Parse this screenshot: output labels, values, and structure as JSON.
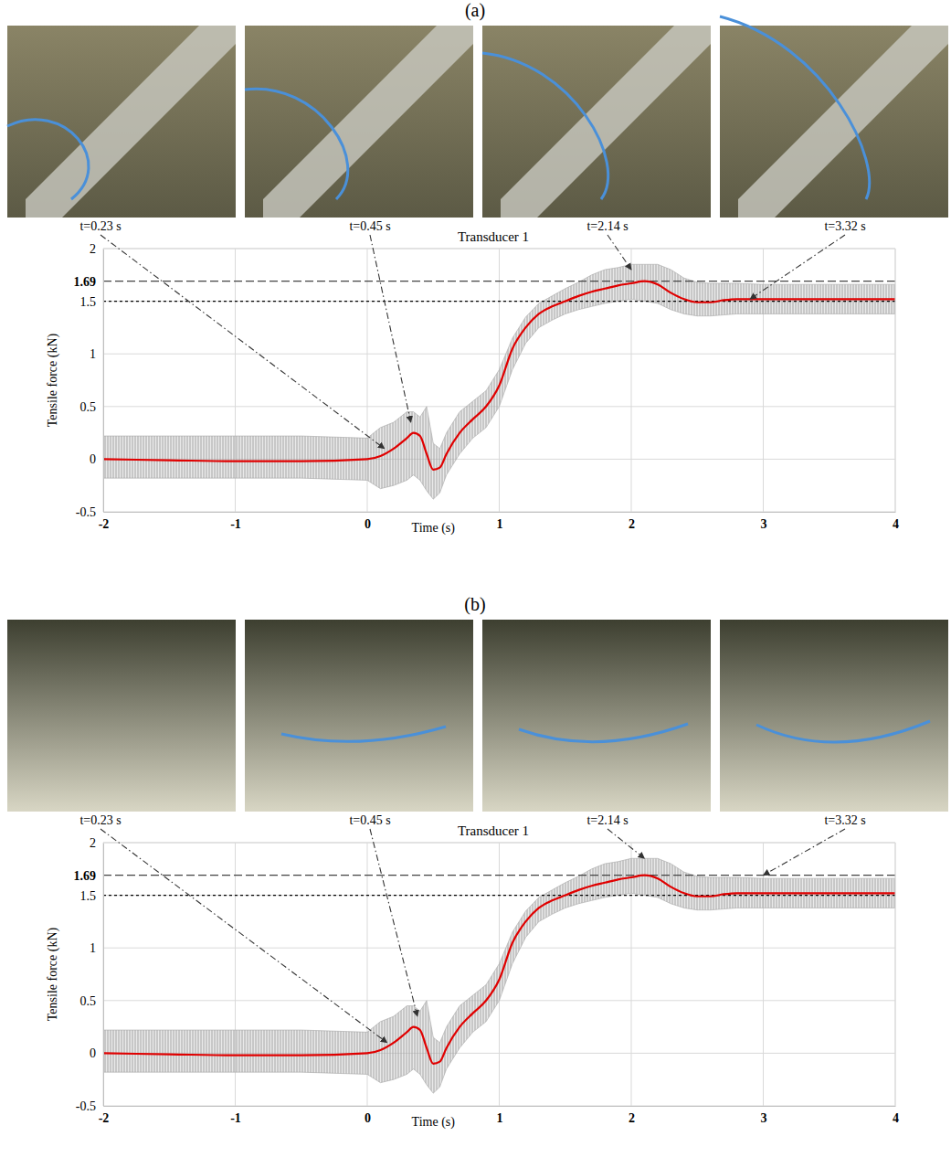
{
  "chart_data": [
    {
      "panel": "(a)",
      "type": "line",
      "title": "Transducer 1",
      "x_label": "Time (s)",
      "y_label": "Tensile force (kN)",
      "x": [
        -2,
        -1.5,
        -1,
        -0.5,
        0,
        0.1,
        0.2,
        0.3,
        0.35,
        0.4,
        0.45,
        0.5,
        0.55,
        0.6,
        0.7,
        0.8,
        0.9,
        1,
        1.1,
        1.2,
        1.3,
        1.4,
        1.5,
        1.6,
        1.7,
        1.8,
        1.9,
        2,
        2.1,
        2.2,
        2.3,
        2.4,
        2.5,
        2.6,
        2.7,
        2.8,
        3,
        3.5,
        4
      ],
      "series": [
        {
          "color": "#e00000",
          "values": [
            0,
            -0.01,
            -0.02,
            -0.02,
            0,
            0.03,
            0.1,
            0.2,
            0.25,
            0.22,
            0.05,
            -0.1,
            -0.08,
            0.05,
            0.25,
            0.38,
            0.5,
            0.7,
            1.05,
            1.25,
            1.38,
            1.45,
            1.5,
            1.55,
            1.59,
            1.62,
            1.65,
            1.67,
            1.69,
            1.66,
            1.58,
            1.52,
            1.49,
            1.49,
            1.51,
            1.52,
            1.52,
            1.52,
            1.52
          ]
        }
      ],
      "band": {
        "color": "#a6a6a6",
        "upper": [
          0.22,
          0.22,
          0.22,
          0.22,
          0.2,
          0.3,
          0.35,
          0.45,
          0.45,
          0.4,
          0.5,
          0.15,
          0.1,
          0.25,
          0.45,
          0.55,
          0.65,
          0.85,
          1.15,
          1.35,
          1.48,
          1.55,
          1.62,
          1.68,
          1.75,
          1.8,
          1.82,
          1.85,
          1.85,
          1.85,
          1.8,
          1.72,
          1.68,
          1.67,
          1.67,
          1.67,
          1.66,
          1.66,
          1.66
        ],
        "lower": [
          -0.18,
          -0.18,
          -0.18,
          -0.18,
          -0.2,
          -0.28,
          -0.25,
          -0.2,
          -0.15,
          -0.2,
          -0.3,
          -0.38,
          -0.32,
          -0.15,
          0.05,
          0.2,
          0.3,
          0.5,
          0.85,
          1.1,
          1.25,
          1.32,
          1.38,
          1.42,
          1.45,
          1.48,
          1.5,
          1.52,
          1.5,
          1.48,
          1.42,
          1.38,
          1.36,
          1.36,
          1.37,
          1.38,
          1.38,
          1.38,
          1.38
        ]
      },
      "xlim": [
        -2,
        4
      ],
      "xticks": [
        -2,
        -1,
        0,
        1,
        2,
        3,
        4
      ],
      "ylim": [
        -0.5,
        2
      ],
      "yticks": [
        -0.5,
        0,
        0.5,
        1,
        1.5,
        2
      ],
      "grid": true,
      "ref_lines": [
        {
          "value": 1.69,
          "label": "1.69",
          "line_style": "dashed"
        },
        {
          "value": 1.5,
          "line_style": "dotted"
        }
      ],
      "annotations": [
        {
          "text": "t=0.23 s",
          "x": 0.13,
          "y": 0.1
        },
        {
          "text": "t=0.45 s",
          "x": 0.33,
          "y": 0.35
        },
        {
          "text": "t=2.14 s",
          "x": 2.0,
          "y": 1.8
        },
        {
          "text": "t=3.32 s",
          "x": 2.9,
          "y": 1.52
        }
      ]
    },
    {
      "panel": "(b)",
      "type": "line",
      "title": "Transducer 1",
      "x_label": "Time (s)",
      "y_label": "Tensile force (kN)",
      "x": [
        -2,
        -1.5,
        -1,
        -0.5,
        0,
        0.1,
        0.2,
        0.3,
        0.35,
        0.4,
        0.45,
        0.5,
        0.55,
        0.6,
        0.7,
        0.8,
        0.9,
        1,
        1.1,
        1.2,
        1.3,
        1.4,
        1.5,
        1.6,
        1.7,
        1.8,
        1.9,
        2,
        2.1,
        2.2,
        2.3,
        2.4,
        2.5,
        2.6,
        2.7,
        2.8,
        3,
        3.5,
        4
      ],
      "series": [
        {
          "color": "#e00000",
          "values": [
            0,
            -0.01,
            -0.02,
            -0.02,
            0,
            0.03,
            0.1,
            0.2,
            0.25,
            0.22,
            0.05,
            -0.1,
            -0.08,
            0.05,
            0.25,
            0.38,
            0.5,
            0.7,
            1.05,
            1.25,
            1.38,
            1.45,
            1.5,
            1.55,
            1.59,
            1.62,
            1.65,
            1.67,
            1.69,
            1.66,
            1.58,
            1.52,
            1.49,
            1.49,
            1.51,
            1.52,
            1.52,
            1.52,
            1.52
          ]
        }
      ],
      "band": {
        "color": "#a6a6a6",
        "upper": [
          0.22,
          0.22,
          0.22,
          0.22,
          0.2,
          0.3,
          0.35,
          0.45,
          0.45,
          0.4,
          0.5,
          0.15,
          0.1,
          0.25,
          0.45,
          0.55,
          0.65,
          0.85,
          1.15,
          1.35,
          1.48,
          1.55,
          1.62,
          1.68,
          1.75,
          1.8,
          1.82,
          1.85,
          1.85,
          1.85,
          1.8,
          1.72,
          1.68,
          1.67,
          1.67,
          1.67,
          1.66,
          1.66,
          1.66
        ],
        "lower": [
          -0.18,
          -0.18,
          -0.18,
          -0.18,
          -0.2,
          -0.28,
          -0.25,
          -0.2,
          -0.15,
          -0.2,
          -0.3,
          -0.38,
          -0.32,
          -0.15,
          0.05,
          0.2,
          0.3,
          0.5,
          0.85,
          1.1,
          1.25,
          1.32,
          1.38,
          1.42,
          1.45,
          1.48,
          1.5,
          1.52,
          1.5,
          1.48,
          1.42,
          1.38,
          1.36,
          1.36,
          1.37,
          1.38,
          1.38,
          1.38,
          1.38
        ]
      },
      "xlim": [
        -2,
        4
      ],
      "xticks": [
        -2,
        -1,
        0,
        1,
        2,
        3,
        4
      ],
      "ylim": [
        -0.5,
        2
      ],
      "yticks": [
        -0.5,
        0,
        0.5,
        1,
        1.5,
        2
      ],
      "grid": true,
      "ref_lines": [
        {
          "value": 1.69,
          "label": "1.69",
          "line_style": "dashed"
        },
        {
          "value": 1.5,
          "line_style": "dotted"
        }
      ],
      "annotations": [
        {
          "text": "t=0.23 s",
          "x": 0.15,
          "y": 0.1
        },
        {
          "text": "t=0.45 s",
          "x": 0.38,
          "y": 0.35
        },
        {
          "text": "t=2.14 s",
          "x": 2.1,
          "y": 1.85
        },
        {
          "text": "t=3.32 s",
          "x": 3.0,
          "y": 1.69
        }
      ]
    }
  ]
}
